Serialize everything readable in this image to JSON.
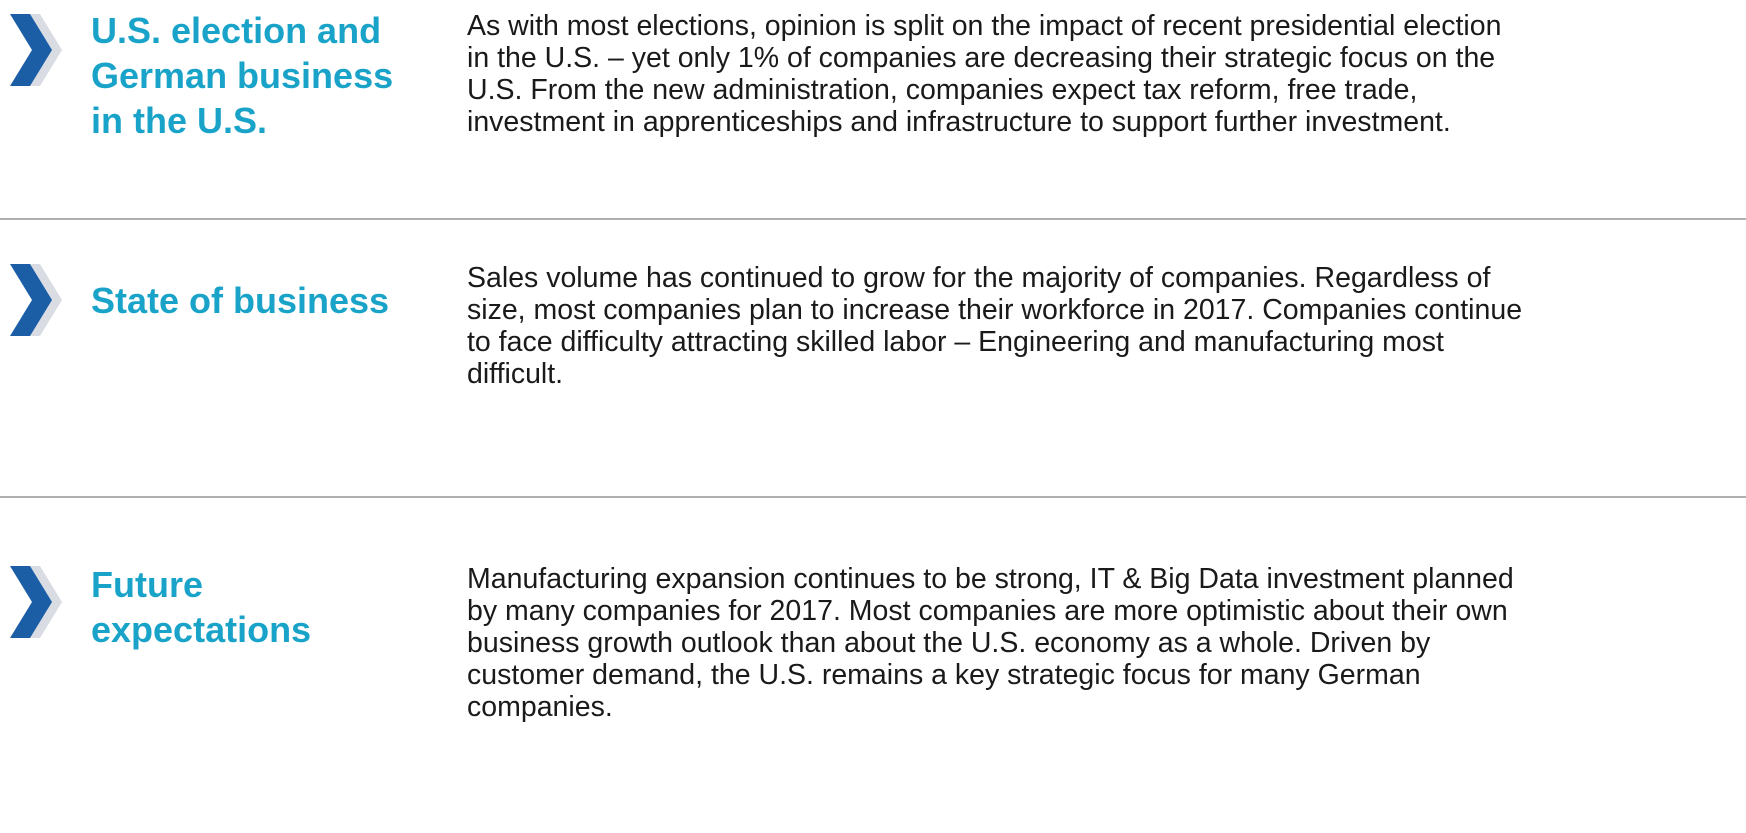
{
  "sections": [
    {
      "heading": [
        "U.S. election and",
        "German business",
        "in the U.S."
      ],
      "body": [
        "As with most elections, opinion is split on the impact of recent presidential election",
        "in the U.S. – yet only 1% of companies are decreasing their strategic focus on the",
        "U.S. From the new administration, companies expect tax reform, free trade,",
        "investment in apprenticeships and infrastructure to support further investment."
      ]
    },
    {
      "heading": [
        "State of business"
      ],
      "body": [
        "Sales volume has continued to grow for the majority of companies. Regardless of",
        "size, most companies plan to increase their workforce in 2017. Companies continue",
        "to face difficulty attracting skilled labor – Engineering and manufacturing most",
        "difficult."
      ]
    },
    {
      "heading": [
        "Future",
        "expectations"
      ],
      "body": [
        "Manufacturing expansion continues to be strong, IT & Big Data investment planned",
        "by many companies for 2017. Most companies are more optimistic about their own",
        "business growth outlook than about the U.S. economy as a whole. Driven by",
        "customer demand, the U.S. remains a key strategic focus for many German",
        "companies."
      ]
    }
  ]
}
